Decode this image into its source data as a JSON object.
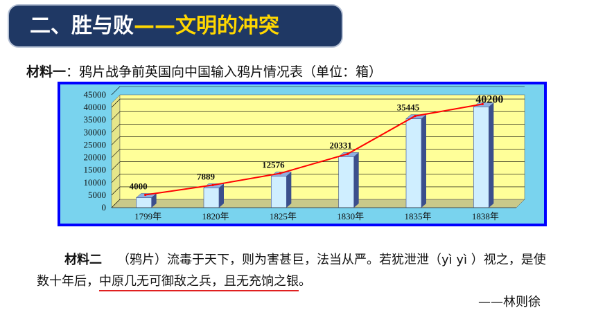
{
  "header": {
    "title_part1": "二、胜与败",
    "title_part2": "——文明的冲突"
  },
  "material1": {
    "label": "材料一",
    "text": "：鸦片战争前英国向中国输入鸦片情况表（单位：箱）"
  },
  "chart_data": {
    "type": "bar",
    "categories": [
      "1799年",
      "1820年",
      "1825年",
      "1830年",
      "1835年",
      "1838年"
    ],
    "values": [
      4000,
      7889,
      12576,
      20331,
      35445,
      40200
    ],
    "data_labels": [
      "4000",
      "7889",
      "12576",
      "20331",
      "35445",
      "40200"
    ],
    "y_ticks": [
      0,
      5000,
      10000,
      15000,
      20000,
      25000,
      30000,
      35000,
      40000,
      45000
    ],
    "ylim": [
      0,
      45000
    ],
    "grid": true,
    "trend_line": true,
    "colors": {
      "frame": "#0000ff",
      "background": "#79d3ee",
      "plot_back": "#ffff99",
      "bar_front": "#cfeeff",
      "bar_side": "#3b4f8c",
      "trend": "#ff0000",
      "grid": "#000000"
    }
  },
  "material2": {
    "label": "材料二",
    "text_before": "（鸦片）流毒于天下，则为害甚巨，法当从严。若犹泄泄（yì yì ）视之，是使数十年后，",
    "underlined": "中原几无可御敌之兵，且无充饷之银",
    "text_after": "。",
    "author": "——林则徐"
  }
}
